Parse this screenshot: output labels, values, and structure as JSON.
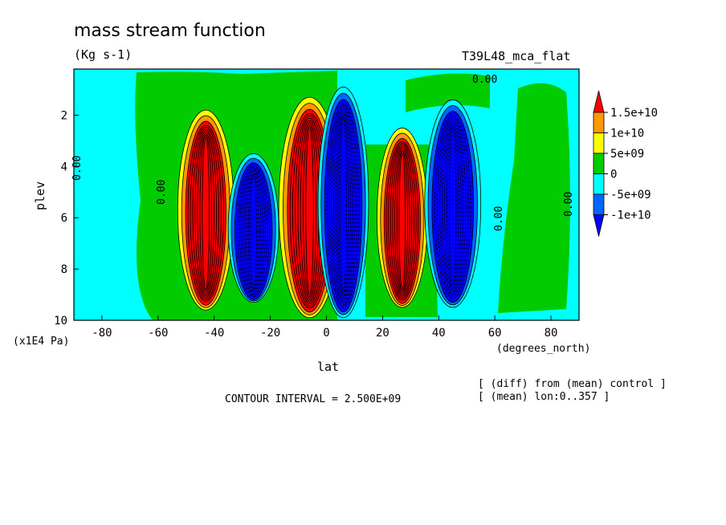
{
  "chart_data": {
    "type": "heatmap",
    "title": "mass stream function",
    "units": "(Kg s-1)",
    "run_label": "T39L48_mca_flat",
    "xlabel": "lat",
    "xunits": "(degrees_north)",
    "ylabel": "plev",
    "yunits": "(x1E4 Pa)",
    "xlim": [
      -90,
      90
    ],
    "ylim": [
      10,
      0.2
    ],
    "xticks": [
      -80,
      -60,
      -40,
      -20,
      0,
      20,
      40,
      60,
      80
    ],
    "yticks": [
      2,
      4,
      6,
      8,
      10
    ],
    "contour_interval": "CONTOUR INTERVAL = 2.500E+09",
    "notes": [
      "[ (diff) from (mean) control ]",
      "[ (mean) lon:0..357 ]"
    ],
    "contour_labels": [
      "0.00",
      "0.00",
      "0.00",
      "0.00",
      "0.00"
    ],
    "legend": {
      "levels": [
        "1.5e+10",
        "1e+10",
        "5e+09",
        "0",
        "-5e+09",
        "-1e+10"
      ],
      "colors": [
        "#ff0000",
        "#ff9900",
        "#ffff00",
        "#00cc00",
        "#00ffff",
        "#0066ff",
        "#0000ff"
      ]
    },
    "cells": [
      {
        "name": "sh-subtropical-positive-cell",
        "lat_center": -43,
        "lat_width": 20,
        "p_top": 1.8,
        "p_bottom": 9.6,
        "peak": 15000000000.0
      },
      {
        "name": "sh-negative-cell",
        "lat_center": -26,
        "lat_width": 18,
        "p_top": 3.5,
        "p_bottom": 9.3,
        "peak": -10000000000.0
      },
      {
        "name": "tropical-positive-cell",
        "lat_center": -6,
        "lat_width": 22,
        "p_top": 1.3,
        "p_bottom": 9.9,
        "peak": 15000000000.0
      },
      {
        "name": "tropical-negative-cell",
        "lat_center": 6,
        "lat_width": 18,
        "p_top": 0.9,
        "p_bottom": 9.9,
        "peak": -10000000000.0
      },
      {
        "name": "nh-positive-cell",
        "lat_center": 27,
        "lat_width": 18,
        "p_top": 2.5,
        "p_bottom": 9.5,
        "peak": 15000000000.0
      },
      {
        "name": "nh-negative-cell",
        "lat_center": 45,
        "lat_width": 20,
        "p_top": 1.4,
        "p_bottom": 9.5,
        "peak": -10000000000.0
      }
    ],
    "background_fill": "#00ffff",
    "near_zero_fill": "#00cc00"
  }
}
